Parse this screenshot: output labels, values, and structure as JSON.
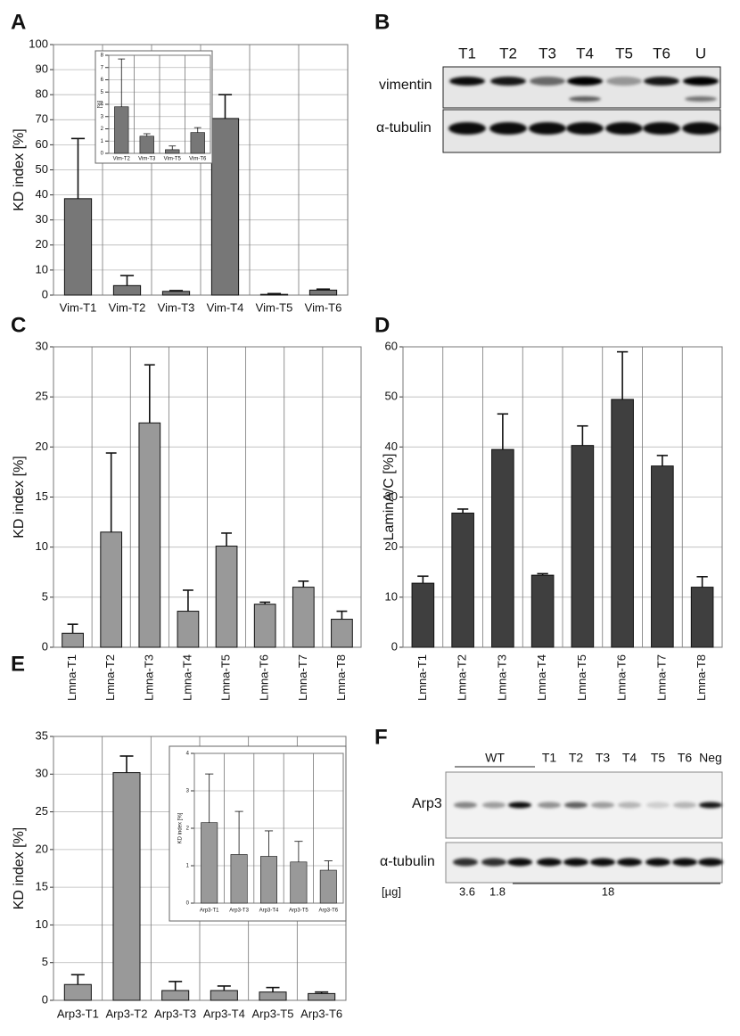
{
  "panels": [
    "A",
    "B",
    "C",
    "D",
    "E",
    "F"
  ],
  "blots": [
    {
      "lanes": [
        "T1",
        "T2",
        "T3",
        "T4",
        "T5",
        "T6",
        "U"
      ],
      "rows": [
        "vimentin",
        "α-tubulin"
      ]
    },
    {
      "group": "WT",
      "lanes": [
        "T1",
        "T2",
        "T3",
        "T4",
        "T5",
        "T6",
        "Neg"
      ],
      "rows": [
        "Arp3",
        "α-tubulin"
      ],
      "amount_label": "[µg]",
      "amounts": [
        3.6,
        1.8,
        18
      ]
    }
  ],
  "chart_data": [
    {
      "type": "bar",
      "ylabel": "KD index [%]",
      "categories": [
        "Vim-T1",
        "Vim-T2",
        "Vim-T3",
        "Vim-T4",
        "Vim-T5",
        "Vim-T6"
      ],
      "values": [
        38.5,
        3.8,
        1.5,
        70.5,
        0.3,
        2.0
      ],
      "errors": [
        24,
        4,
        0.3,
        9.5,
        0.3,
        0.4
      ],
      "color": "#777777",
      "ylim": [
        0,
        100
      ],
      "yticks": [
        0,
        10,
        20,
        30,
        40,
        50,
        60,
        70,
        80,
        90,
        100
      ],
      "grid": true
    },
    {
      "type": "bar",
      "ylabel": "[%]",
      "categories": [
        "Vim-T2",
        "Vim-T3",
        "Vim-T5",
        "Vim-T6"
      ],
      "values": [
        3.8,
        1.4,
        0.3,
        1.7
      ],
      "errors": [
        3.9,
        0.2,
        0.3,
        0.4
      ],
      "color": "#777777",
      "ylim": [
        0,
        8
      ],
      "yticks": [
        0,
        1,
        2,
        3,
        4,
        5,
        6,
        7,
        8
      ],
      "grid": true
    },
    {
      "type": "bar",
      "ylabel": "KD index [%]",
      "categories": [
        "Lmna-T1",
        "Lmna-T2",
        "Lmna-T3",
        "Lmna-T4",
        "Lmna-T5",
        "Lmna-T6",
        "Lmna-T7",
        "Lmna-T8"
      ],
      "values": [
        1.4,
        11.5,
        22.4,
        3.6,
        10.1,
        4.3,
        6.0,
        2.8
      ],
      "errors": [
        0.9,
        7.9,
        5.8,
        2.1,
        1.3,
        0.2,
        0.6,
        0.8
      ],
      "color": "#999999",
      "ylim": [
        0,
        30
      ],
      "yticks": [
        0,
        5,
        10,
        15,
        20,
        25,
        30
      ],
      "grid": true
    },
    {
      "type": "bar",
      "ylabel": "LaminA/C [%]",
      "categories": [
        "Lmna-T1",
        "Lmna-T2",
        "Lmna-T3",
        "Lmna-T4",
        "Lmna-T5",
        "Lmna-T6",
        "Lmna-T7",
        "Lmna-T8"
      ],
      "values": [
        12.8,
        26.8,
        39.5,
        14.4,
        40.3,
        49.5,
        36.2,
        12.0
      ],
      "errors": [
        1.4,
        0.8,
        7.1,
        0.3,
        3.9,
        9.5,
        2.1,
        2.1
      ],
      "color": "#3f3f3f",
      "ylim": [
        0,
        60
      ],
      "yticks": [
        0,
        10,
        20,
        30,
        40,
        50,
        60
      ],
      "grid": true
    },
    {
      "type": "bar",
      "ylabel": "KD index [%]",
      "categories": [
        "Arp3-T1",
        "Arp3-T2",
        "Arp3-T3",
        "Arp3-T4",
        "Arp3-T5",
        "Arp3-T6"
      ],
      "values": [
        2.1,
        30.2,
        1.3,
        1.3,
        1.1,
        0.9
      ],
      "errors": [
        1.3,
        2.2,
        1.2,
        0.6,
        0.6,
        0.2
      ],
      "color": "#999999",
      "ylim": [
        0,
        35
      ],
      "yticks": [
        0,
        5,
        10,
        15,
        20,
        25,
        30,
        35
      ],
      "grid": true
    },
    {
      "type": "bar",
      "ylabel": "KD index [%]",
      "categories": [
        "Arp3-T1",
        "Arp3-T3",
        "Arp3-T4",
        "Arp3-T5",
        "Arp3-T6"
      ],
      "values": [
        2.15,
        1.3,
        1.25,
        1.1,
        0.88
      ],
      "errors": [
        1.3,
        1.15,
        0.68,
        0.55,
        0.25
      ],
      "color": "#999999",
      "ylim": [
        0,
        4
      ],
      "yticks": [
        0,
        1,
        2,
        3,
        4
      ],
      "grid": true
    }
  ]
}
